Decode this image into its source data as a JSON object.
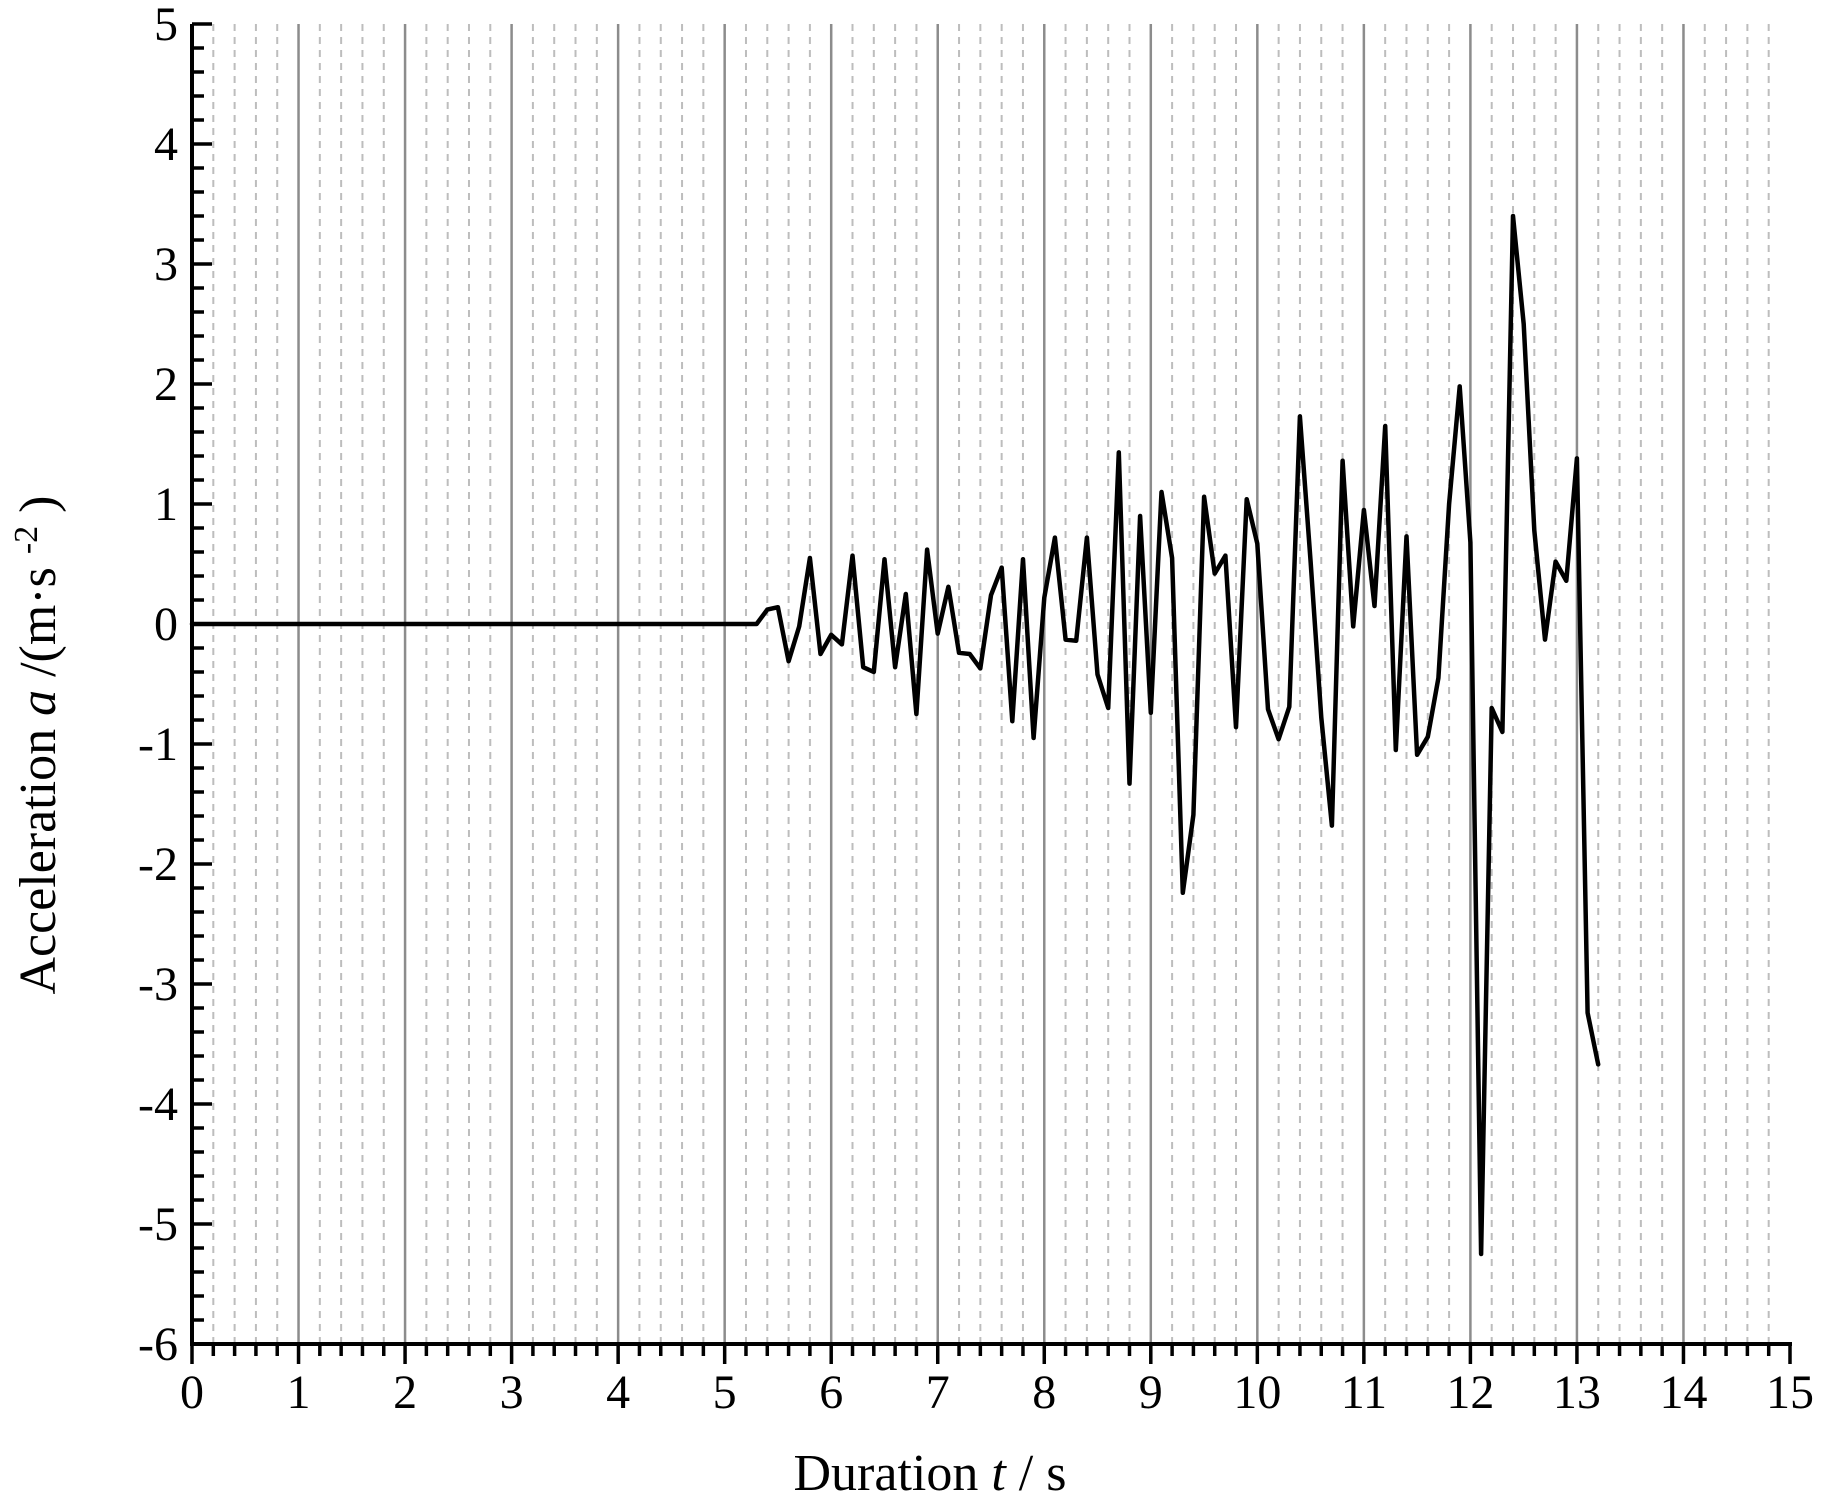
{
  "chart_data": {
    "type": "line",
    "title": "",
    "xlabel": "Duration",
    "xlabel_var": "t",
    "xlabel_unit": " / s",
    "ylabel": "Acceleration",
    "ylabel_var": "a",
    "ylabel_unit_prefix": "/(m·s",
    "ylabel_unit_exp": "-2",
    "ylabel_unit_suffix": ")",
    "xlim": [
      0,
      15
    ],
    "ylim": [
      -6,
      5
    ],
    "xticks": [
      "0",
      "1",
      "2",
      "3",
      "4",
      "5",
      "6",
      "7",
      "8",
      "9",
      "10",
      "11",
      "12",
      "13",
      "14",
      "15"
    ],
    "yticks": [
      "-6",
      "-5",
      "-4",
      "-3",
      "-2",
      "-1",
      "0",
      "1",
      "2",
      "3",
      "4",
      "5"
    ],
    "grid": {
      "major_x": true,
      "minor_x_dashed": true,
      "minor_x_step": 0.2,
      "y": false
    },
    "colors": {
      "line": "#000000",
      "major_grid": "#8c8c8c",
      "minor_grid": "#bdbdbd",
      "axis": "#000000"
    },
    "series": [
      {
        "x": [
          0,
          5.3,
          5.4,
          5.5,
          5.6,
          5.7,
          5.8,
          5.9,
          6.0,
          6.1,
          6.2,
          6.3,
          6.4,
          6.5,
          6.6,
          6.7,
          6.8,
          6.9,
          7.0,
          7.1,
          7.2,
          7.3,
          7.4,
          7.5,
          7.6,
          7.7,
          7.8,
          7.9,
          8.0,
          8.1,
          8.2,
          8.3,
          8.4,
          8.5,
          8.6,
          8.7,
          8.8,
          8.9,
          9.0,
          9.1,
          9.2,
          9.3,
          9.4,
          9.5,
          9.6,
          9.7,
          9.8,
          9.9,
          10.0,
          10.1,
          10.2,
          10.3,
          10.4,
          10.5,
          10.6,
          10.7,
          10.8,
          10.9,
          11.0,
          11.1,
          11.2,
          11.3,
          11.4,
          11.5,
          11.6,
          11.7,
          11.8,
          11.9,
          12.0,
          12.1,
          12.2,
          12.3,
          12.4,
          12.5,
          12.6,
          12.7,
          12.8,
          12.9,
          13.0,
          13.1,
          13.2
        ],
        "y": [
          0,
          0,
          0.12,
          0.14,
          -0.31,
          -0.02,
          0.55,
          -0.25,
          -0.09,
          -0.17,
          0.57,
          -0.36,
          -0.4,
          0.54,
          -0.36,
          0.25,
          -0.75,
          0.62,
          -0.08,
          0.31,
          -0.24,
          -0.25,
          -0.37,
          0.24,
          0.47,
          -0.81,
          0.54,
          -0.95,
          0.22,
          0.72,
          -0.13,
          -0.14,
          0.72,
          -0.42,
          -0.7,
          1.43,
          -1.33,
          0.9,
          -0.74,
          1.1,
          0.55,
          -2.24,
          -1.59,
          1.06,
          0.42,
          0.57,
          -0.86,
          1.04,
          0.67,
          -0.71,
          -0.96,
          -0.69,
          1.73,
          0.52,
          -0.78,
          -1.68,
          1.36,
          -0.02,
          0.95,
          0.15,
          1.65,
          -1.05,
          0.73,
          -1.09,
          -0.94,
          -0.45,
          1.0,
          1.98,
          0.68,
          -5.25,
          -0.7,
          -0.9,
          3.4,
          2.5,
          0.78,
          -0.13,
          0.52,
          0.36,
          1.38,
          -3.24,
          -3.67
        ]
      }
    ]
  }
}
